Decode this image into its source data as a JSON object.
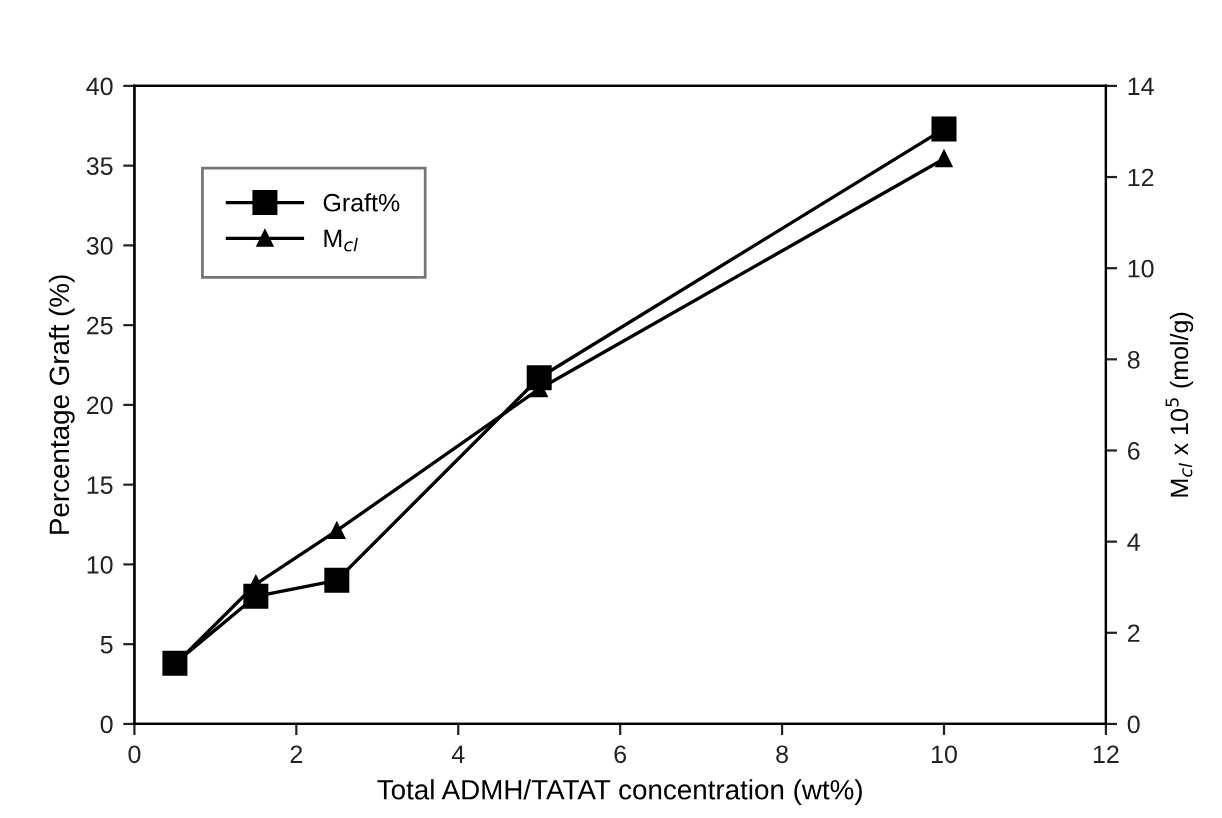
{
  "chart_data": {
    "type": "line",
    "xlabel": "Total ADMH/TATAT concentration (wt%)",
    "ylabel": "Percentage Graft (%)",
    "y2label": "M$_{cl}$ x 10$^{5}$ (mol/g)",
    "x": [
      0.5,
      1.5,
      2.5,
      5,
      10
    ],
    "series": [
      {
        "name": "Graft%",
        "color": "#000000",
        "values": [
          3.8,
          8.0,
          9.0,
          21.7,
          37.3
        ],
        "marker": "square"
      },
      {
        "name": "M$_{cl}$",
        "color": "#000000",
        "values": [
          1.3,
          3.07,
          4.24,
          7.35,
          12.4
        ],
        "marker": "triangle",
        "axis": "y2"
      }
    ],
    "xlim": [
      0,
      12
    ],
    "xticks": [
      0,
      2,
      4,
      6,
      8,
      10,
      12
    ],
    "ylim": [
      0,
      40
    ],
    "yticks": [
      0,
      5,
      10,
      15,
      20,
      25,
      30,
      35,
      40
    ],
    "y2lim": [
      0,
      14
    ],
    "y2ticks": [
      0,
      2,
      4,
      6,
      8,
      10,
      12,
      14
    ],
    "grid": false,
    "legend": "top left",
    "line_style": "solid"
  }
}
